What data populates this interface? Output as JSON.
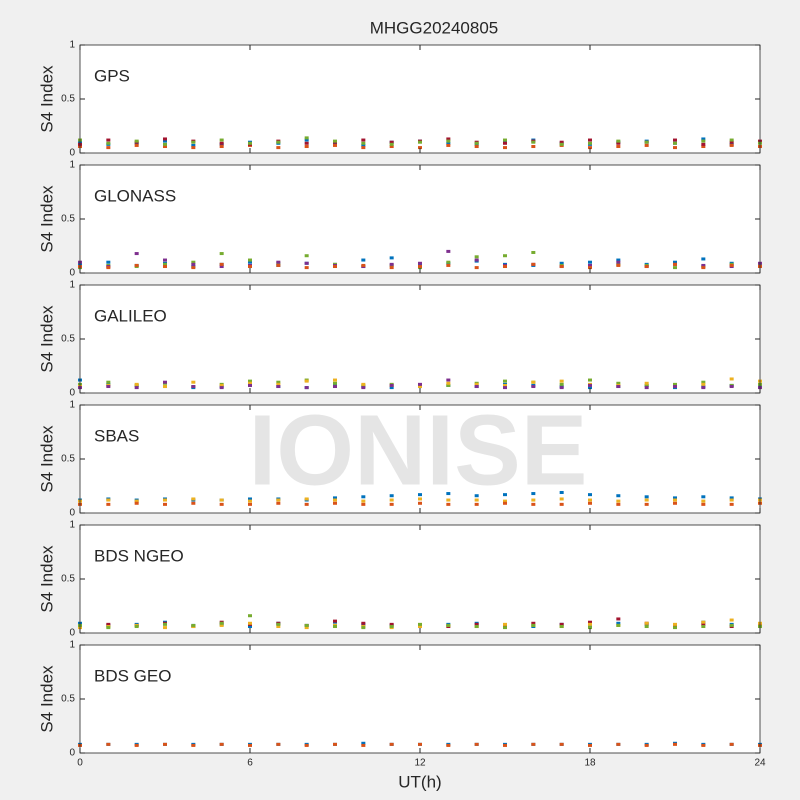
{
  "title": "MHGG20240805",
  "watermark": "IONISE",
  "chart_data": [
    {
      "type": "scatter",
      "label": "GPS",
      "ylabel": "S4 Index",
      "xlim": [
        0,
        24
      ],
      "xticks": [
        0,
        6,
        12,
        18,
        24
      ],
      "ylim": [
        0,
        1
      ],
      "yticks": [
        0,
        0.5,
        1
      ],
      "x": [
        0,
        1,
        2,
        3,
        4,
        5,
        6,
        7,
        8,
        9,
        10,
        11,
        12,
        13,
        14,
        15,
        16,
        17,
        18,
        19,
        20,
        21,
        22,
        23,
        24
      ],
      "series": [
        {
          "color": "#0072BD",
          "values": [
            0.1,
            0.08,
            0.09,
            0.11,
            0.07,
            0.08,
            0.1,
            0.09,
            0.12,
            0.08,
            0.07,
            0.1,
            0.11,
            0.09,
            0.08,
            0.1,
            0.12,
            0.09,
            0.08,
            0.1,
            0.11,
            0.09,
            0.13,
            0.08,
            0.1
          ]
        },
        {
          "color": "#D95319",
          "values": [
            0.06,
            0.05,
            0.07,
            0.06,
            0.05,
            0.06,
            0.07,
            0.05,
            0.06,
            0.07,
            0.05,
            0.06,
            0.05,
            0.07,
            0.06,
            0.05,
            0.06,
            0.07,
            0.05,
            0.06,
            0.07,
            0.05,
            0.06,
            0.07,
            0.06
          ]
        },
        {
          "color": "#A2142F",
          "values": [
            0.08,
            0.12,
            0.1,
            0.13,
            0.11,
            0.09,
            0.08,
            0.11,
            0.09,
            0.1,
            0.12,
            0.1,
            0.11,
            0.13,
            0.1,
            0.09,
            0.11,
            0.1,
            0.12,
            0.09,
            0.1,
            0.12,
            0.08,
            0.1,
            0.11
          ]
        },
        {
          "color": "#77AC30",
          "values": [
            0.12,
            0.09,
            0.11,
            0.08,
            0.1,
            0.12,
            0.09,
            0.1,
            0.14,
            0.11,
            0.09,
            0.08,
            0.1,
            0.11,
            0.09,
            0.12,
            0.1,
            0.08,
            0.09,
            0.11,
            0.1,
            0.09,
            0.11,
            0.12,
            0.09
          ]
        }
      ]
    },
    {
      "type": "scatter",
      "label": "GLONASS",
      "ylabel": "S4 Index",
      "xlim": [
        0,
        24
      ],
      "xticks": [
        0,
        6,
        12,
        18,
        24
      ],
      "ylim": [
        0,
        1
      ],
      "yticks": [
        0,
        0.5,
        1
      ],
      "x": [
        0,
        1,
        2,
        3,
        4,
        5,
        6,
        7,
        8,
        9,
        10,
        11,
        12,
        13,
        14,
        15,
        16,
        17,
        18,
        19,
        20,
        21,
        22,
        23,
        24
      ],
      "series": [
        {
          "color": "#0072BD",
          "values": [
            0.08,
            0.1,
            0.07,
            0.09,
            0.06,
            0.08,
            0.1,
            0.07,
            0.09,
            0.08,
            0.12,
            0.14,
            0.07,
            0.09,
            0.11,
            0.08,
            0.07,
            0.09,
            0.1,
            0.12,
            0.08,
            0.1,
            0.13,
            0.09,
            0.08
          ]
        },
        {
          "color": "#77AC30",
          "values": [
            0.05,
            0.07,
            0.06,
            0.08,
            0.1,
            0.18,
            0.12,
            0.09,
            0.16,
            0.08,
            0.06,
            0.07,
            0.05,
            0.1,
            0.15,
            0.16,
            0.19,
            0.07,
            0.06,
            0.08,
            0.07,
            0.05,
            0.06,
            0.08,
            0.07
          ]
        },
        {
          "color": "#7E2F8E",
          "values": [
            0.1,
            0.06,
            0.18,
            0.12,
            0.08,
            0.06,
            0.07,
            0.1,
            0.09,
            0.07,
            0.06,
            0.08,
            0.09,
            0.2,
            0.12,
            0.07,
            0.08,
            0.06,
            0.07,
            0.1,
            0.06,
            0.08,
            0.07,
            0.06,
            0.09
          ]
        },
        {
          "color": "#D95319",
          "values": [
            0.06,
            0.05,
            0.07,
            0.06,
            0.05,
            0.08,
            0.06,
            0.07,
            0.05,
            0.06,
            0.07,
            0.05,
            0.06,
            0.07,
            0.05,
            0.06,
            0.08,
            0.06,
            0.05,
            0.07,
            0.06,
            0.08,
            0.05,
            0.07,
            0.06
          ]
        }
      ]
    },
    {
      "type": "scatter",
      "label": "GALILEO",
      "ylabel": "S4 Index",
      "xlim": [
        0,
        24
      ],
      "xticks": [
        0,
        6,
        12,
        18,
        24
      ],
      "ylim": [
        0,
        1
      ],
      "yticks": [
        0,
        0.5,
        1
      ],
      "x": [
        0,
        1,
        2,
        3,
        4,
        5,
        6,
        7,
        8,
        9,
        10,
        11,
        12,
        13,
        14,
        15,
        16,
        17,
        18,
        19,
        20,
        21,
        22,
        23,
        24
      ],
      "series": [
        {
          "color": "#0072BD",
          "values": [
            0.12,
            0.08,
            0.07,
            0.06,
            0.05,
            0.06,
            0.07,
            0.06,
            0.05,
            0.07,
            0.06,
            0.05,
            0.06,
            0.07,
            0.06,
            0.08,
            0.07,
            0.06,
            0.05,
            0.06,
            0.07,
            0.05,
            0.06,
            0.07,
            0.06
          ]
        },
        {
          "color": "#77AC30",
          "values": [
            0.08,
            0.1,
            0.07,
            0.09,
            0.06,
            0.08,
            0.11,
            0.1,
            0.12,
            0.09,
            0.07,
            0.08,
            0.06,
            0.07,
            0.09,
            0.11,
            0.1,
            0.08,
            0.12,
            0.09,
            0.07,
            0.08,
            0.1,
            0.07,
            0.08
          ]
        },
        {
          "color": "#EDB120",
          "values": [
            0.06,
            0.07,
            0.08,
            0.06,
            0.1,
            0.07,
            0.09,
            0.08,
            0.11,
            0.12,
            0.08,
            0.07,
            0.06,
            0.09,
            0.08,
            0.07,
            0.1,
            0.11,
            0.08,
            0.07,
            0.09,
            0.06,
            0.08,
            0.13,
            0.11
          ]
        },
        {
          "color": "#7E2F8E",
          "values": [
            0.05,
            0.06,
            0.05,
            0.1,
            0.06,
            0.05,
            0.07,
            0.06,
            0.05,
            0.06,
            0.05,
            0.07,
            0.08,
            0.12,
            0.06,
            0.05,
            0.06,
            0.05,
            0.07,
            0.06,
            0.05,
            0.06,
            0.05,
            0.06,
            0.05
          ]
        }
      ]
    },
    {
      "type": "scatter",
      "label": "SBAS",
      "ylabel": "S4 Index",
      "xlim": [
        0,
        24
      ],
      "xticks": [
        0,
        6,
        12,
        18,
        24
      ],
      "ylim": [
        0,
        1
      ],
      "yticks": [
        0,
        0.5,
        1
      ],
      "x": [
        0,
        1,
        2,
        3,
        4,
        5,
        6,
        7,
        8,
        9,
        10,
        11,
        12,
        13,
        14,
        15,
        16,
        17,
        18,
        19,
        20,
        21,
        22,
        23,
        24
      ],
      "series": [
        {
          "color": "#0072BD",
          "values": [
            0.12,
            0.13,
            0.12,
            0.13,
            0.12,
            0.12,
            0.13,
            0.13,
            0.12,
            0.14,
            0.15,
            0.16,
            0.17,
            0.18,
            0.16,
            0.17,
            0.18,
            0.19,
            0.17,
            0.16,
            0.15,
            0.14,
            0.15,
            0.14,
            0.13
          ]
        },
        {
          "color": "#EDB120",
          "values": [
            0.11,
            0.12,
            0.11,
            0.12,
            0.13,
            0.12,
            0.11,
            0.12,
            0.13,
            0.12,
            0.11,
            0.12,
            0.13,
            0.12,
            0.12,
            0.11,
            0.12,
            0.13,
            0.12,
            0.11,
            0.12,
            0.12,
            0.11,
            0.12,
            0.12
          ]
        },
        {
          "color": "#D95319",
          "values": [
            0.08,
            0.08,
            0.09,
            0.08,
            0.09,
            0.08,
            0.08,
            0.09,
            0.08,
            0.09,
            0.08,
            0.08,
            0.09,
            0.08,
            0.08,
            0.09,
            0.08,
            0.08,
            0.09,
            0.08,
            0.08,
            0.09,
            0.08,
            0.08,
            0.09
          ]
        }
      ]
    },
    {
      "type": "scatter",
      "label": "BDS NGEO",
      "ylabel": "S4 Index",
      "xlim": [
        0,
        24
      ],
      "xticks": [
        0,
        6,
        12,
        18,
        24
      ],
      "ylim": [
        0,
        1
      ],
      "yticks": [
        0,
        0.5,
        1
      ],
      "x": [
        0,
        1,
        2,
        3,
        4,
        5,
        6,
        7,
        8,
        9,
        10,
        11,
        12,
        13,
        14,
        15,
        16,
        17,
        18,
        19,
        20,
        21,
        22,
        23,
        24
      ],
      "series": [
        {
          "color": "#0072BD",
          "values": [
            0.09,
            0.07,
            0.08,
            0.1,
            0.07,
            0.08,
            0.06,
            0.09,
            0.07,
            0.1,
            0.08,
            0.07,
            0.06,
            0.08,
            0.09,
            0.07,
            0.06,
            0.08,
            0.07,
            0.09,
            0.08,
            0.07,
            0.1,
            0.08,
            0.07
          ]
        },
        {
          "color": "#A2142F",
          "values": [
            0.06,
            0.08,
            0.07,
            0.09,
            0.06,
            0.1,
            0.08,
            0.09,
            0.07,
            0.11,
            0.09,
            0.08,
            0.07,
            0.06,
            0.08,
            0.07,
            0.09,
            0.08,
            0.1,
            0.13,
            0.09,
            0.07,
            0.08,
            0.06,
            0.07
          ]
        },
        {
          "color": "#EDB120",
          "values": [
            0.05,
            0.06,
            0.07,
            0.05,
            0.06,
            0.07,
            0.09,
            0.06,
            0.05,
            0.07,
            0.06,
            0.05,
            0.06,
            0.07,
            0.06,
            0.08,
            0.07,
            0.06,
            0.08,
            0.07,
            0.09,
            0.08,
            0.1,
            0.12,
            0.09
          ]
        },
        {
          "color": "#77AC30",
          "values": [
            0.07,
            0.05,
            0.06,
            0.08,
            0.07,
            0.09,
            0.16,
            0.08,
            0.07,
            0.06,
            0.05,
            0.06,
            0.08,
            0.07,
            0.06,
            0.05,
            0.07,
            0.06,
            0.05,
            0.07,
            0.06,
            0.05,
            0.06,
            0.07,
            0.06
          ]
        }
      ]
    },
    {
      "type": "scatter",
      "label": "BDS GEO",
      "ylabel": "S4 Index",
      "xlabel": "UT(h)",
      "xlim": [
        0,
        24
      ],
      "xticks": [
        0,
        6,
        12,
        18,
        24
      ],
      "ylim": [
        0,
        1
      ],
      "yticks": [
        0,
        0.5,
        1
      ],
      "x": [
        0,
        1,
        2,
        3,
        4,
        5,
        6,
        7,
        8,
        9,
        10,
        11,
        12,
        13,
        14,
        15,
        16,
        17,
        18,
        19,
        20,
        21,
        22,
        23,
        24
      ],
      "series": [
        {
          "color": "#0072BD",
          "values": [
            0.08,
            0.08,
            0.08,
            0.08,
            0.08,
            0.08,
            0.08,
            0.08,
            0.08,
            0.08,
            0.09,
            0.08,
            0.08,
            0.08,
            0.08,
            0.08,
            0.08,
            0.08,
            0.08,
            0.08,
            0.08,
            0.09,
            0.08,
            0.08,
            0.08
          ]
        },
        {
          "color": "#D95319",
          "values": [
            0.07,
            0.08,
            0.07,
            0.08,
            0.07,
            0.08,
            0.07,
            0.08,
            0.07,
            0.08,
            0.07,
            0.08,
            0.08,
            0.07,
            0.08,
            0.07,
            0.08,
            0.08,
            0.07,
            0.08,
            0.07,
            0.08,
            0.07,
            0.08,
            0.07
          ]
        }
      ]
    }
  ]
}
